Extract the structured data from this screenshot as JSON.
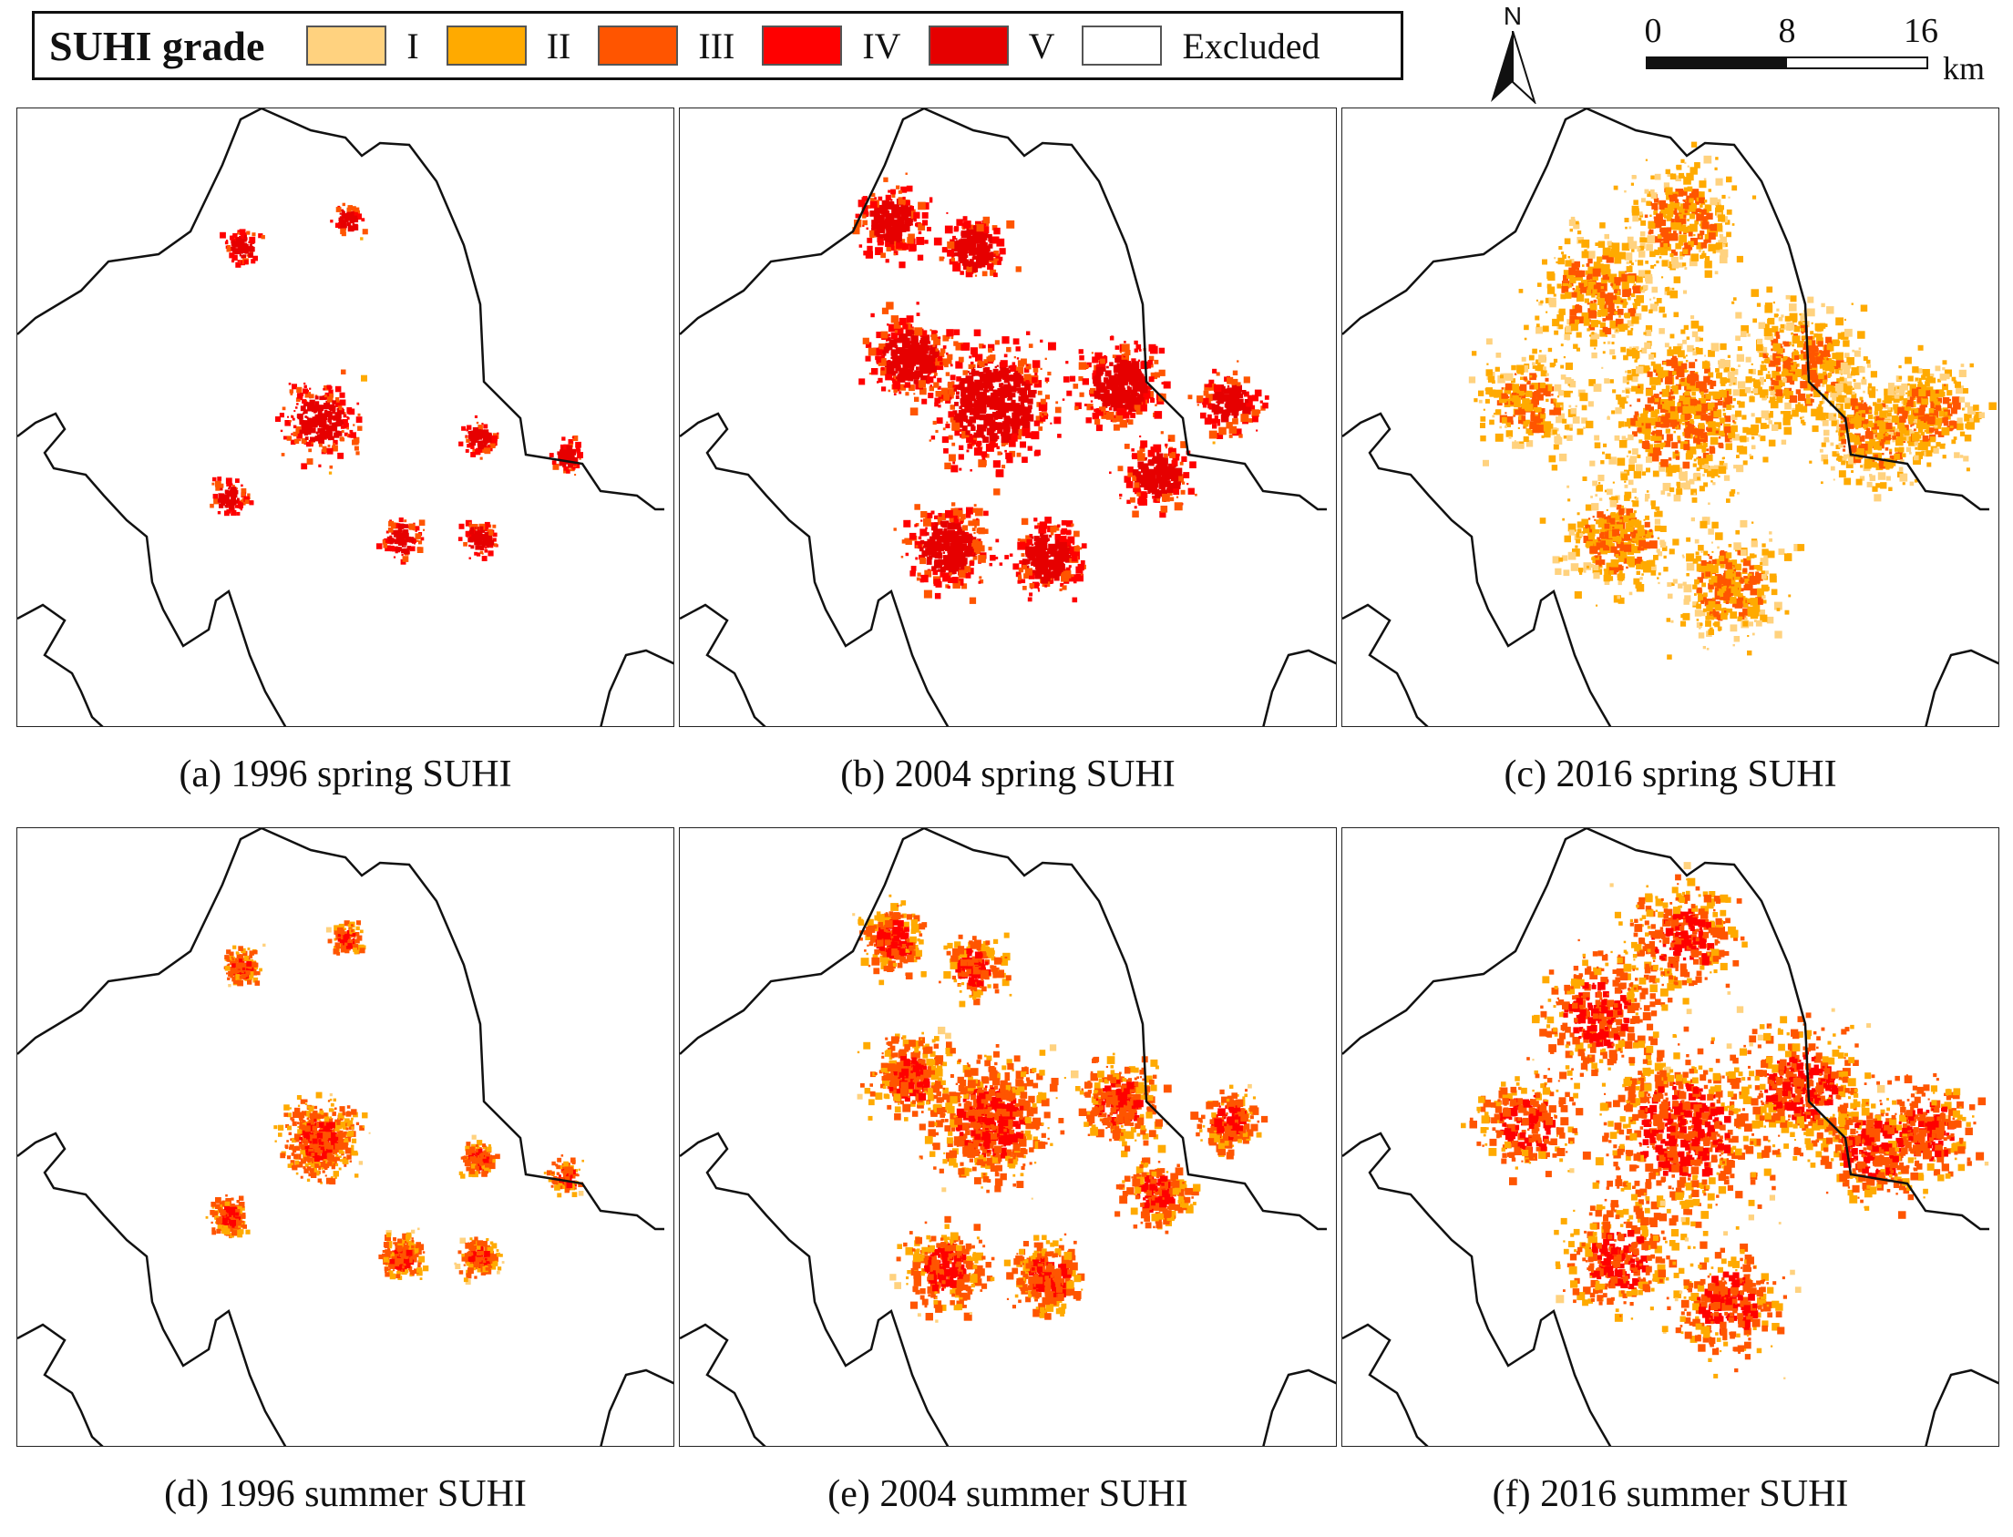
{
  "legend": {
    "title": "SUHI grade",
    "items": [
      {
        "label": "I",
        "color": "#FFD27F"
      },
      {
        "label": "II",
        "color": "#FFAA00"
      },
      {
        "label": "III",
        "color": "#FF5500"
      },
      {
        "label": "IV",
        "color": "#FF0000"
      },
      {
        "label": "V",
        "color": "#E60000"
      },
      {
        "label": "Excluded",
        "color": "#FFFFFF"
      }
    ]
  },
  "north_arrow": {
    "letter": "N",
    "icon": "north-arrow-icon"
  },
  "scale_bar": {
    "ticks": [
      "0",
      "8",
      "16"
    ],
    "unit": "km"
  },
  "panels": [
    {
      "caption": "(a) 1996 spring SUHI",
      "season": "spring",
      "year": "1996"
    },
    {
      "caption": "(b) 2004 spring SUHI",
      "season": "spring",
      "year": "2004"
    },
    {
      "caption": "(c) 2016 spring SUHI",
      "season": "spring",
      "year": "2016"
    },
    {
      "caption": "(d) 1996 summer SUHI",
      "season": "summer",
      "year": "1996"
    },
    {
      "caption": "(e) 2004 summer SUHI",
      "season": "summer",
      "year": "2004"
    },
    {
      "caption": "(f) 2016 summer SUHI",
      "season": "summer",
      "year": "2016"
    }
  ]
}
